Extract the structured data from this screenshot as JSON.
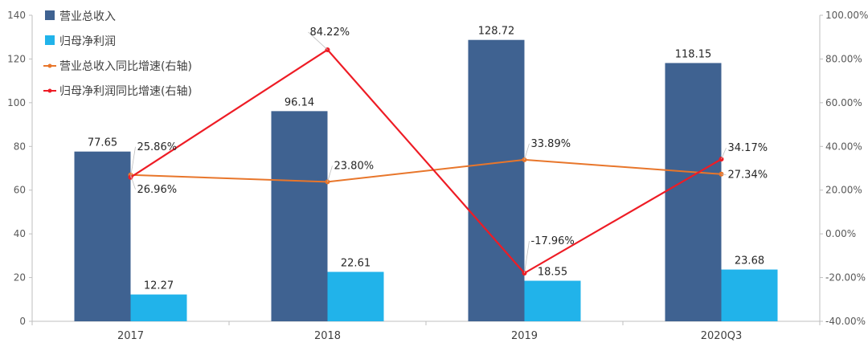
{
  "chart_data": {
    "type": "bar",
    "categories": [
      "2017",
      "2018",
      "2019",
      "2020Q3"
    ],
    "series": [
      {
        "name": "营业总收入",
        "kind": "bar",
        "axis": "left",
        "color": "#3F6291",
        "values": [
          77.65,
          96.14,
          128.72,
          118.15
        ]
      },
      {
        "name": "归母净利润",
        "kind": "bar",
        "axis": "left",
        "color": "#21B3EA",
        "values": [
          12.27,
          22.61,
          18.55,
          23.68
        ]
      },
      {
        "name": "营业总收入同比增速(右轴)",
        "kind": "line",
        "axis": "right",
        "color": "#E8762B",
        "values": [
          26.96,
          23.8,
          33.89,
          27.34
        ]
      },
      {
        "name": "归母净利润同比增速(右轴)",
        "kind": "line",
        "axis": "right",
        "color": "#EE1C25",
        "values": [
          25.86,
          84.22,
          -17.96,
          34.17
        ]
      }
    ],
    "bar_labels": [
      [
        "77.65",
        "96.14",
        "128.72",
        "118.15"
      ],
      [
        "12.27",
        "22.61",
        "18.55",
        "23.68"
      ]
    ],
    "line_labels": [
      [
        "26.96%",
        "23.80%",
        "33.89%",
        "27.34%"
      ],
      [
        "25.86%",
        "84.22%",
        "-17.96%",
        "34.17%"
      ]
    ],
    "y_left": {
      "min": 0,
      "max": 140,
      "ticks": [
        "0",
        "20",
        "40",
        "60",
        "80",
        "100",
        "120",
        "140"
      ]
    },
    "y_right": {
      "min": -40,
      "max": 100,
      "ticks": [
        "-40.00%",
        "-20.00%",
        "0.00%",
        "20.00%",
        "40.00%",
        "60.00%",
        "80.00%",
        "100.00%"
      ]
    },
    "legend_position": "top-left",
    "grid": false
  }
}
